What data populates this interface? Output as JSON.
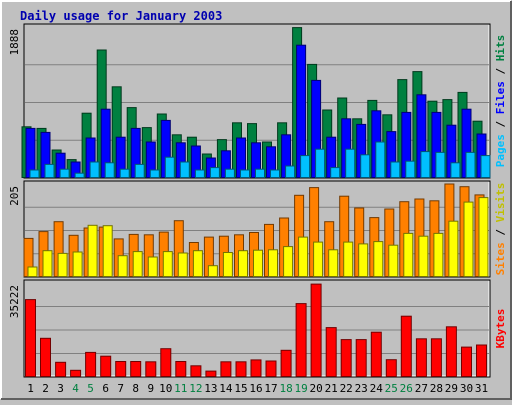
{
  "chart_data": {
    "type": "bar",
    "title": "Daily usage for January 2003",
    "days": [
      "1",
      "2",
      "3",
      "4",
      "5",
      "6",
      "7",
      "8",
      "9",
      "10",
      "11",
      "12",
      "13",
      "14",
      "15",
      "16",
      "17",
      "18",
      "19",
      "20",
      "21",
      "22",
      "23",
      "24",
      "25",
      "26",
      "27",
      "28",
      "29",
      "30",
      "31"
    ],
    "weekend_days": [
      "4",
      "5",
      "11",
      "12",
      "18",
      "19",
      "25",
      "26"
    ],
    "colors": {
      "hits": "#008040",
      "files": "#0000ff",
      "pages": "#00c0ff",
      "visits": "#ffff00",
      "sites": "#ff8000",
      "kbytes": "#ff0000",
      "weekday_label": "#000000",
      "weekend_label": "#008040",
      "panel_bg": "#c0c0c0",
      "gridline": "#808080",
      "title": "#0000b0"
    },
    "panels": [
      {
        "id": "hits-files-pages",
        "ymax": 1888,
        "y_tick_label": "1888",
        "side_label": [
          {
            "text": "Pages",
            "color": "#00c0ff"
          },
          {
            "text": " / ",
            "color": "#000000"
          },
          {
            "text": "Files",
            "color": "#0000ff"
          },
          {
            "text": " / ",
            "color": "#000000"
          },
          {
            "text": "Hits",
            "color": "#008040"
          }
        ],
        "series": [
          {
            "name": "Hits",
            "color": "#008040",
            "values": [
              640,
              620,
              350,
              230,
              810,
              1600,
              1140,
              880,
              630,
              800,
              540,
              510,
              300,
              480,
              690,
              680,
              450,
              690,
              1880,
              1420,
              850,
              1000,
              740,
              970,
              790,
              1230,
              1330,
              960,
              980,
              1070,
              710
            ]
          },
          {
            "name": "Files",
            "color": "#0000ff",
            "values": [
              620,
              570,
              310,
              200,
              500,
              860,
              510,
              620,
              450,
              720,
              440,
              400,
              250,
              340,
              500,
              440,
              390,
              540,
              1660,
              1220,
              510,
              740,
              670,
              840,
              580,
              820,
              1040,
              820,
              660,
              860,
              550
            ]
          },
          {
            "name": "Pages",
            "color": "#00c0ff",
            "values": [
              100,
              170,
              110,
              60,
              200,
              190,
              110,
              170,
              100,
              260,
              200,
              100,
              130,
              110,
              100,
              110,
              100,
              150,
              280,
              360,
              130,
              360,
              290,
              450,
              200,
              210,
              330,
              320,
              190,
              320,
              280
            ]
          }
        ]
      },
      {
        "id": "sites-visits",
        "ymax": 205,
        "y_tick_label": "205",
        "side_label": [
          {
            "text": "Sites",
            "color": "#ff8000"
          },
          {
            "text": " / ",
            "color": "#000000"
          },
          {
            "text": "Visits",
            "color": "#c0c000"
          }
        ],
        "series": [
          {
            "name": "Sites",
            "color": "#ff8000",
            "values": [
              85,
              100,
              122,
              92,
              108,
              110,
              84,
              94,
              93,
              99,
              124,
              76,
              88,
              90,
              93,
              98,
              116,
              130,
              180,
              197,
              122,
              178,
              152,
              131,
              150,
              166,
              172,
              168,
              205,
              199,
              181
            ]
          },
          {
            "name": "Visits",
            "color": "#ffff00",
            "values": [
              22,
              58,
              52,
              55,
              114,
              113,
              47,
              56,
              44,
              56,
              53,
              58,
              25,
              54,
              58,
              59,
              60,
              67,
              88,
              77,
              60,
              77,
              73,
              78,
              70,
              96,
              90,
              96,
              123,
              165,
              175
            ]
          }
        ]
      },
      {
        "id": "kbytes",
        "ymax": 35222,
        "y_tick_label": "35222",
        "side_label": [
          {
            "text": "KBytes",
            "color": "#ff0000"
          }
        ],
        "series": [
          {
            "name": "KBytes",
            "color": "#ff0000",
            "values": [
              29000,
              14500,
              5500,
              2500,
              9200,
              7800,
              5800,
              5800,
              5700,
              10600,
              5800,
              4200,
              2200,
              5700,
              5700,
              6400,
              6000,
              10000,
              27500,
              34800,
              18500,
              14000,
              14000,
              16800,
              6500,
              22800,
              14300,
              14300,
              18800,
              11200,
              12000
            ]
          }
        ]
      }
    ]
  }
}
